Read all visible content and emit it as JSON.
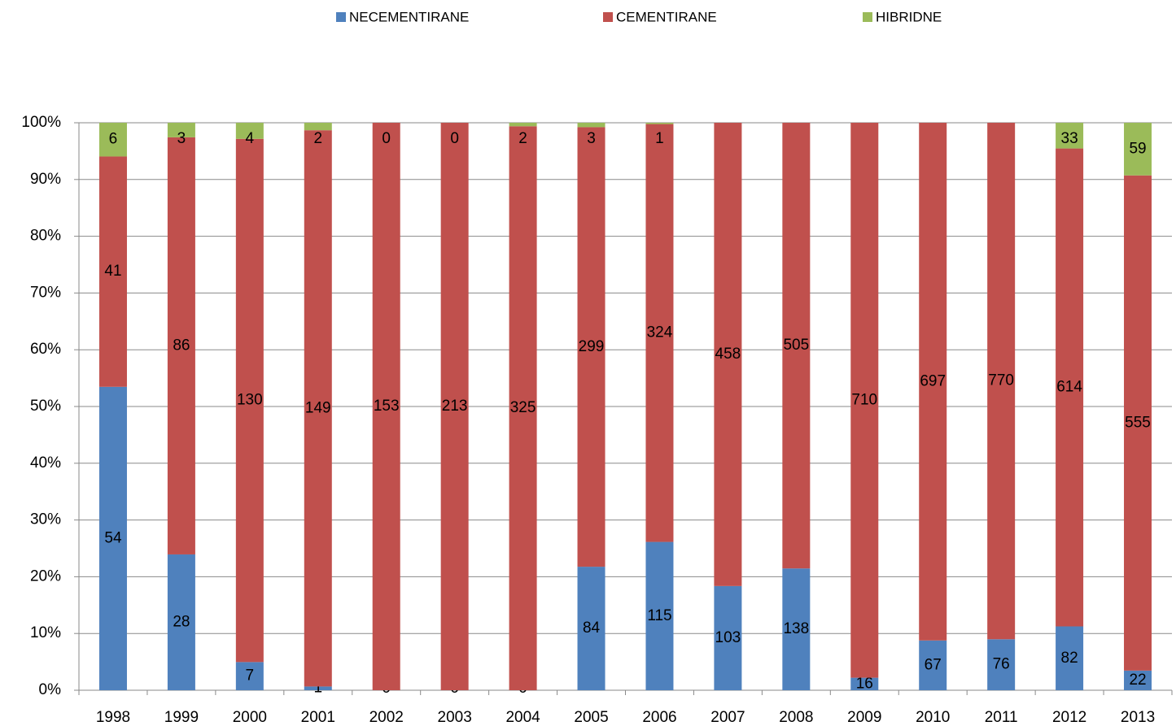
{
  "chart_data": {
    "type": "bar",
    "stacked": "percent",
    "categories": [
      "1998",
      "1999",
      "2000",
      "2001",
      "2002",
      "2003",
      "2004",
      "2005",
      "2006",
      "2007",
      "2008",
      "2009",
      "2010",
      "2011",
      "2012",
      "2013"
    ],
    "series": [
      {
        "name": "NECEMENTIRANE",
        "color": "#4f81bd",
        "values": [
          54,
          28,
          7,
          1,
          0,
          0,
          0,
          84,
          115,
          103,
          138,
          16,
          67,
          76,
          82,
          22
        ]
      },
      {
        "name": "CEMENTIRANE",
        "color": "#c0504d",
        "values": [
          41,
          86,
          130,
          149,
          153,
          213,
          325,
          299,
          324,
          458,
          505,
          710,
          697,
          770,
          614,
          555
        ]
      },
      {
        "name": "HIBRIDNE",
        "color": "#9bbb59",
        "values": [
          6,
          3,
          4,
          2,
          0,
          0,
          2,
          3,
          1,
          0,
          0,
          0,
          0,
          0,
          33,
          59
        ],
        "value_labels": [
          "6",
          "3",
          "4",
          "2",
          "0",
          "0",
          "2",
          "3",
          "1",
          null,
          null,
          null,
          null,
          null,
          "33",
          "59"
        ]
      }
    ],
    "ylim": [
      0,
      100
    ],
    "yticks": [
      {
        "value": 0,
        "label": "0%"
      },
      {
        "value": 10,
        "label": "10%"
      },
      {
        "value": 20,
        "label": "20%"
      },
      {
        "value": 30,
        "label": "30%"
      },
      {
        "value": 40,
        "label": "40%"
      },
      {
        "value": 50,
        "label": "50%"
      },
      {
        "value": 60,
        "label": "60%"
      },
      {
        "value": 70,
        "label": "70%"
      },
      {
        "value": 80,
        "label": "80%"
      },
      {
        "value": 90,
        "label": "90%"
      },
      {
        "value": 100,
        "label": "100%"
      }
    ],
    "grid": true,
    "legend": "top"
  }
}
